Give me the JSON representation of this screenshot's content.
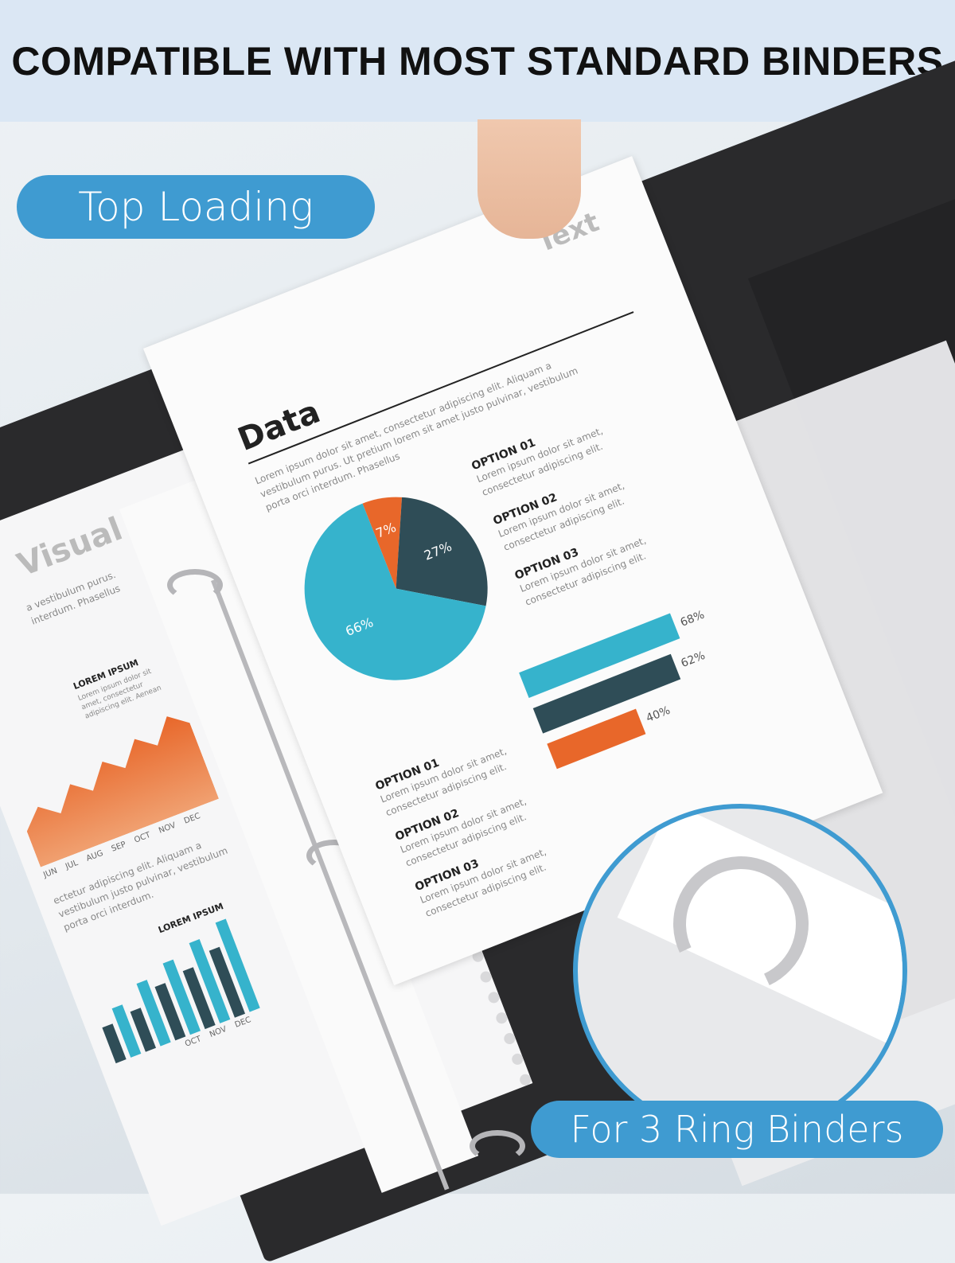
{
  "header": {
    "title": "COMPATIBLE WITH MOST STANDARD BINDERS"
  },
  "labels": {
    "top_loading": "Top Loading",
    "ring_binders": "For 3 Ring Binders"
  },
  "paper": {
    "text_heading": "Text",
    "data_heading": "Data",
    "intro": "Lorem ipsum dolor sit amet, consectetur adipiscing elit. Aliquam a vestibulum purus. Ut pretium lorem sit amet justo pulvinar, vestibulum porta orci interdum. Phasellus",
    "options": [
      {
        "label": "OPTION 01",
        "desc": "Lorem ipsum dolor sit amet, consectetur adipiscing elit."
      },
      {
        "label": "OPTION 02",
        "desc": "Lorem ipsum dolor sit amet, consectetur adipiscing elit."
      },
      {
        "label": "OPTION 03",
        "desc": "Lorem ipsum dolor sit amet, consectetur adipiscing elit."
      }
    ],
    "pie": [
      {
        "label": "7%",
        "value": 7,
        "color": "#e8672a"
      },
      {
        "label": "27%",
        "value": 27,
        "color": "#2f4d57"
      },
      {
        "label": "66%",
        "value": 66,
        "color": "#36b3cc"
      }
    ],
    "bars": [
      {
        "label": "68%",
        "value": 68,
        "color": "#36b3cc"
      },
      {
        "label": "62%",
        "value": 62,
        "color": "#2f4d57"
      },
      {
        "label": "40%",
        "value": 40,
        "color": "#e8672a"
      }
    ]
  },
  "left_page": {
    "heading": "Visual",
    "text1": "a vestibulum purus. interdum. Phasellus",
    "lorem_title": "LOREM IPSUM",
    "lorem_small": "Lorem ipsum dolor sit amet, consectetur adipiscing elit. Aenean",
    "months": [
      "JUN",
      "JUL",
      "AUG",
      "SEP",
      "OCT",
      "NOV",
      "DEC"
    ],
    "text2": "ectetur adipiscing elit. Aliquam a vestibulum justo pulvinar, vestibulum porta orci interdum.",
    "lorem_title2": "LOREM IPSUM",
    "months2": [
      "OCT",
      "NOV",
      "DEC"
    ]
  },
  "colors": {
    "accent": "#3f9bd1",
    "orange": "#e8672a",
    "teal": "#36b3cc",
    "slate": "#2f4d57"
  }
}
